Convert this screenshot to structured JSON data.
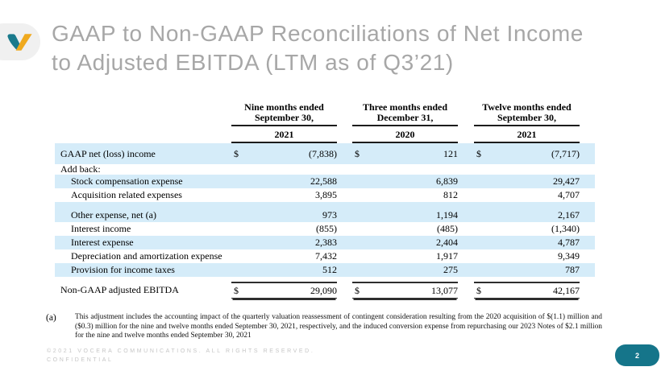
{
  "header": {
    "title_line1": "GAAP to Non-GAAP Reconciliations of Net Income",
    "title_line2": "to Adjusted EBITDA (LTM as of Q3’21)"
  },
  "table": {
    "currency_symbol": "$",
    "columns": [
      {
        "line1": "Nine months ended",
        "line2": "September 30,",
        "year": "2021"
      },
      {
        "line1": "Three months ended",
        "line2": "December 31,",
        "year": "2020"
      },
      {
        "line1": "Twelve months ended",
        "line2": "September 30,",
        "year": "2021"
      }
    ],
    "rows": [
      {
        "label": "GAAP net (loss) income",
        "values": [
          "(7,838)",
          "121",
          "(7,717)"
        ],
        "dollar": true,
        "bg": "blue",
        "first": true
      },
      {
        "label": "Add back:",
        "values": [
          "",
          "",
          ""
        ],
        "bg": "white",
        "addback": true
      },
      {
        "label": "Stock compensation expense",
        "values": [
          "22,588",
          "6,839",
          "29,427"
        ],
        "bg": "blue",
        "indent": true
      },
      {
        "label": "Acquisition related expenses",
        "values": [
          "3,895",
          "812",
          "4,707"
        ],
        "bg": "white",
        "indent": true
      },
      {
        "label": "",
        "values": [
          "",
          "",
          ""
        ],
        "bg": "blue",
        "blank": true
      },
      {
        "label": "Other expense, net (a)",
        "values": [
          "973",
          "1,194",
          "2,167"
        ],
        "bg": "blue",
        "indent": true
      },
      {
        "label": "Interest income",
        "values": [
          "(855)",
          "(485)",
          "(1,340)"
        ],
        "bg": "white",
        "indent": true
      },
      {
        "label": "Interest expense",
        "values": [
          "2,383",
          "2,404",
          "4,787"
        ],
        "bg": "blue",
        "indent": true
      },
      {
        "label": "Depreciation and amortization expense",
        "values": [
          "7,432",
          "1,917",
          "9,349"
        ],
        "bg": "white",
        "indent": true
      },
      {
        "label": "Provision for income taxes",
        "values": [
          "512",
          "275",
          "787"
        ],
        "bg": "blue",
        "indent": true
      },
      {
        "label": "Non-GAAP adjusted EBITDA",
        "values": [
          "29,090",
          "13,077",
          "42,167"
        ],
        "dollar": true,
        "bg": "white",
        "total": true
      }
    ]
  },
  "footnote": {
    "marker": "(a)",
    "text": "This adjustment includes the accounting impact of the quarterly valuation reassessment of contingent consideration resulting from the 2020 acquisition of $(1.1) million and ($0.3) million for the nine and twelve months ended September 30, 2021, respectively, and the induced conversion expense from repurchasing our 2023 Notes of $2.1 million for the nine and twelve months ended September 30, 2021"
  },
  "footer": {
    "line1": "©2021 VOCERA COMMUNICATIONS. ALL RIGHTS RESERVED.",
    "line2": "CONFIDENTIAL",
    "page_number": "2"
  },
  "colors": {
    "row_highlight": "#d5ecf9",
    "accent_teal": "#15758a",
    "logo_teal": "#1a7a8c",
    "logo_gold": "#efa91e",
    "title_gray": "#a7a7a7"
  }
}
